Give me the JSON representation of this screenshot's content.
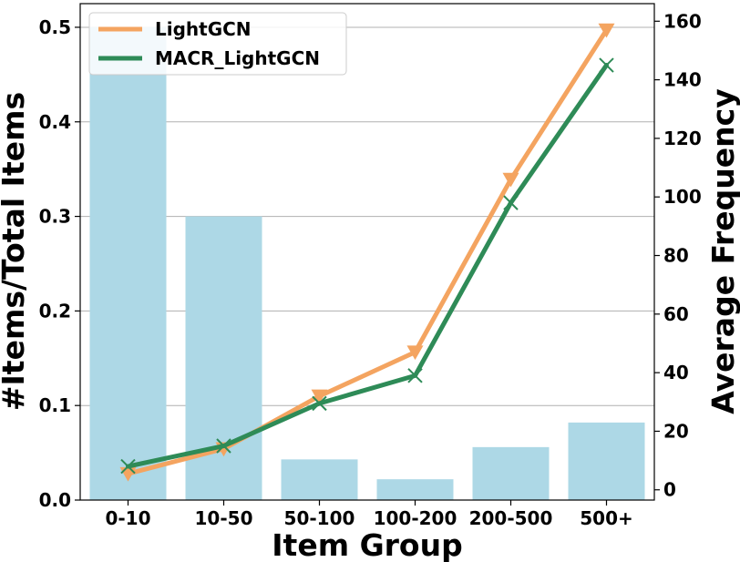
{
  "chart_data": {
    "type": "bar+line",
    "xlabel": "Item Group",
    "ylabel_left": "#Items/Total Items",
    "ylabel_right": "Average Frequency",
    "categories": [
      "0-10",
      "10-50",
      "50-100",
      "100-200",
      "200-500",
      "500+"
    ],
    "bars": {
      "name": "#Items/Total Items",
      "color": "#add8e6",
      "values": [
        0.5,
        0.3,
        0.043,
        0.022,
        0.056,
        0.082
      ]
    },
    "series": [
      {
        "name": "LightGCN",
        "color": "#f4a460",
        "marker": "triangle-down",
        "axis": "right",
        "values": [
          5.5,
          14,
          32,
          47,
          106,
          157
        ]
      },
      {
        "name": "MACR_LightGCN",
        "color": "#2e8b57",
        "marker": "x",
        "axis": "right",
        "values": [
          8,
          15,
          29.5,
          39,
          98,
          145
        ]
      }
    ],
    "ylim_left": [
      0,
      0.525
    ],
    "yticks_left": [
      "0.0",
      "0.1",
      "0.2",
      "0.3",
      "0.4",
      "0.5"
    ],
    "ylim_right": [
      -3.5,
      166
    ],
    "yticks_right": [
      "0",
      "20",
      "40",
      "60",
      "80",
      "100",
      "120",
      "140",
      "160"
    ],
    "grid": "horizontal",
    "legend_position": "top-left"
  }
}
